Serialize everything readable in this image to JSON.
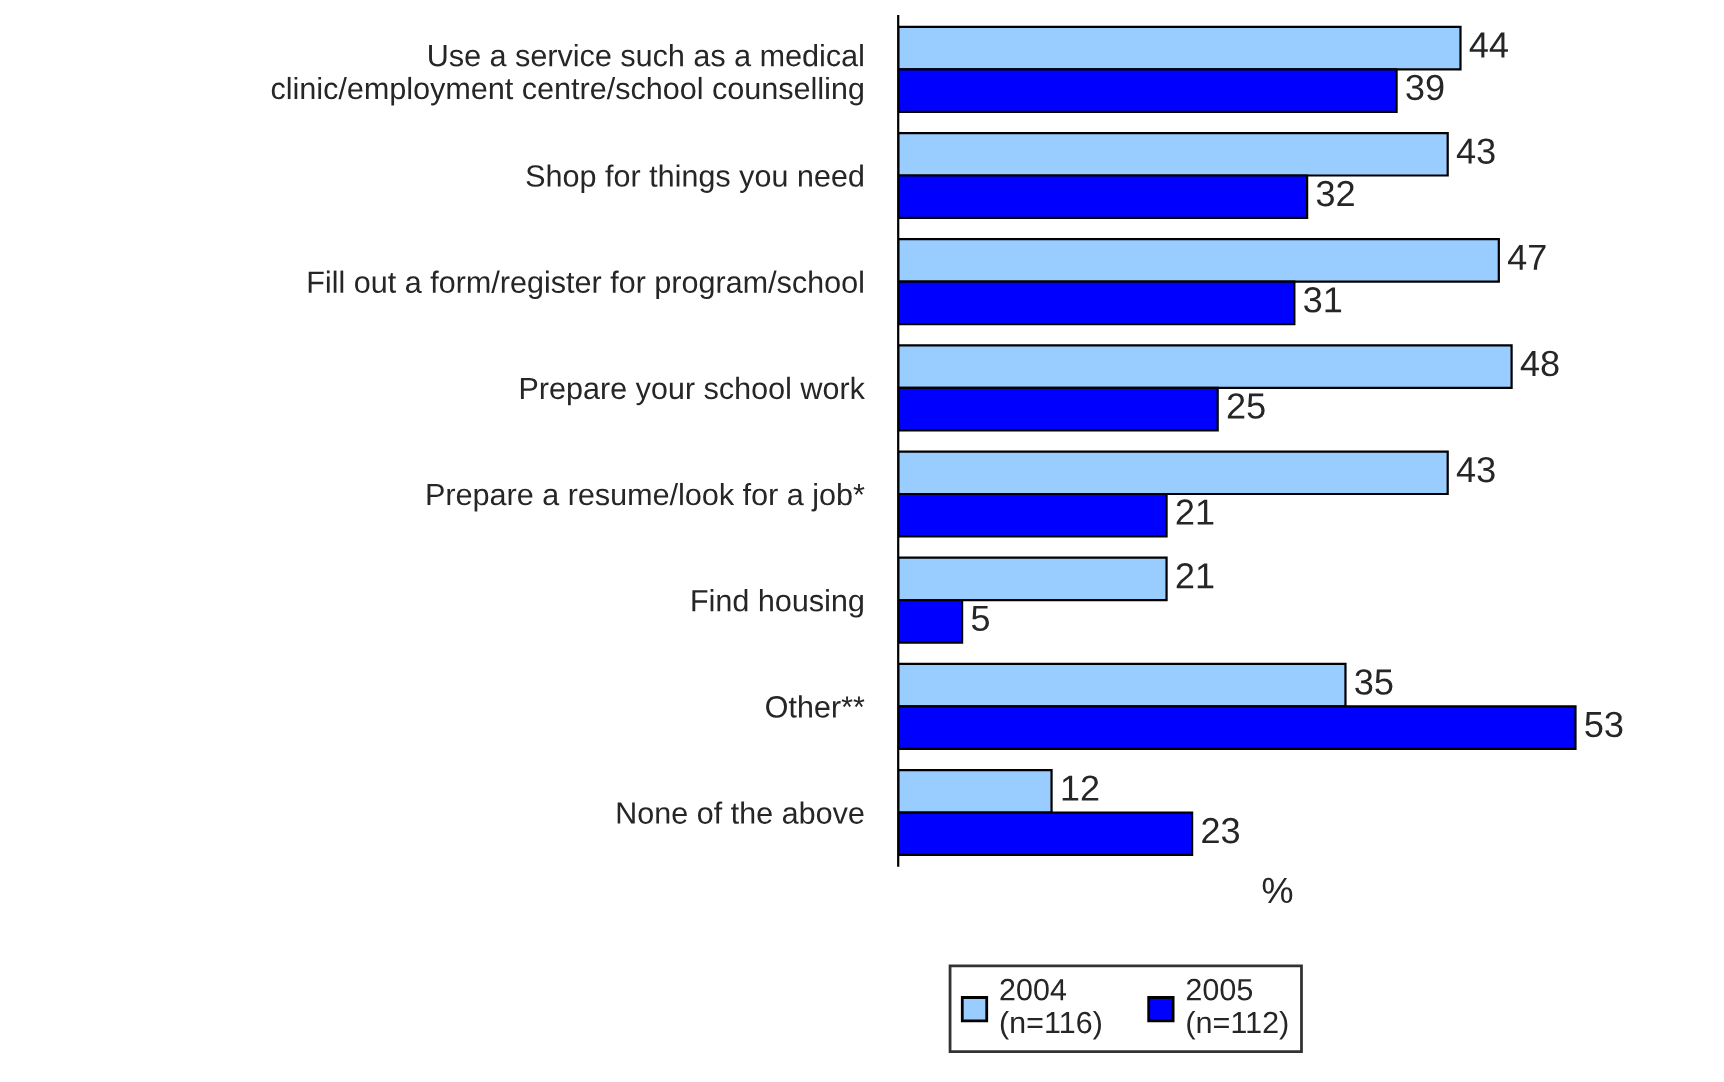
{
  "chart_data": {
    "type": "bar",
    "orientation": "horizontal",
    "xlabel": "%",
    "categories": [
      "Use a service such as a medical\nclinic/employment centre/school counselling",
      "Shop for things you need",
      "Fill out a form/register for program/school",
      "Prepare your school work",
      "Prepare a resume/look for a job*",
      "Find housing",
      "Other**",
      "None of the above"
    ],
    "series": [
      {
        "name": "2004\n(n=116)",
        "color": "#99ccff",
        "values": [
          44,
          43,
          47,
          48,
          43,
          21,
          35,
          12
        ]
      },
      {
        "name": "2005\n(n=112)",
        "color": "#0000ff",
        "values": [
          39,
          32,
          31,
          25,
          21,
          5,
          53,
          23
        ]
      }
    ],
    "data_labels": true,
    "legend": "bottom",
    "grid": false
  }
}
